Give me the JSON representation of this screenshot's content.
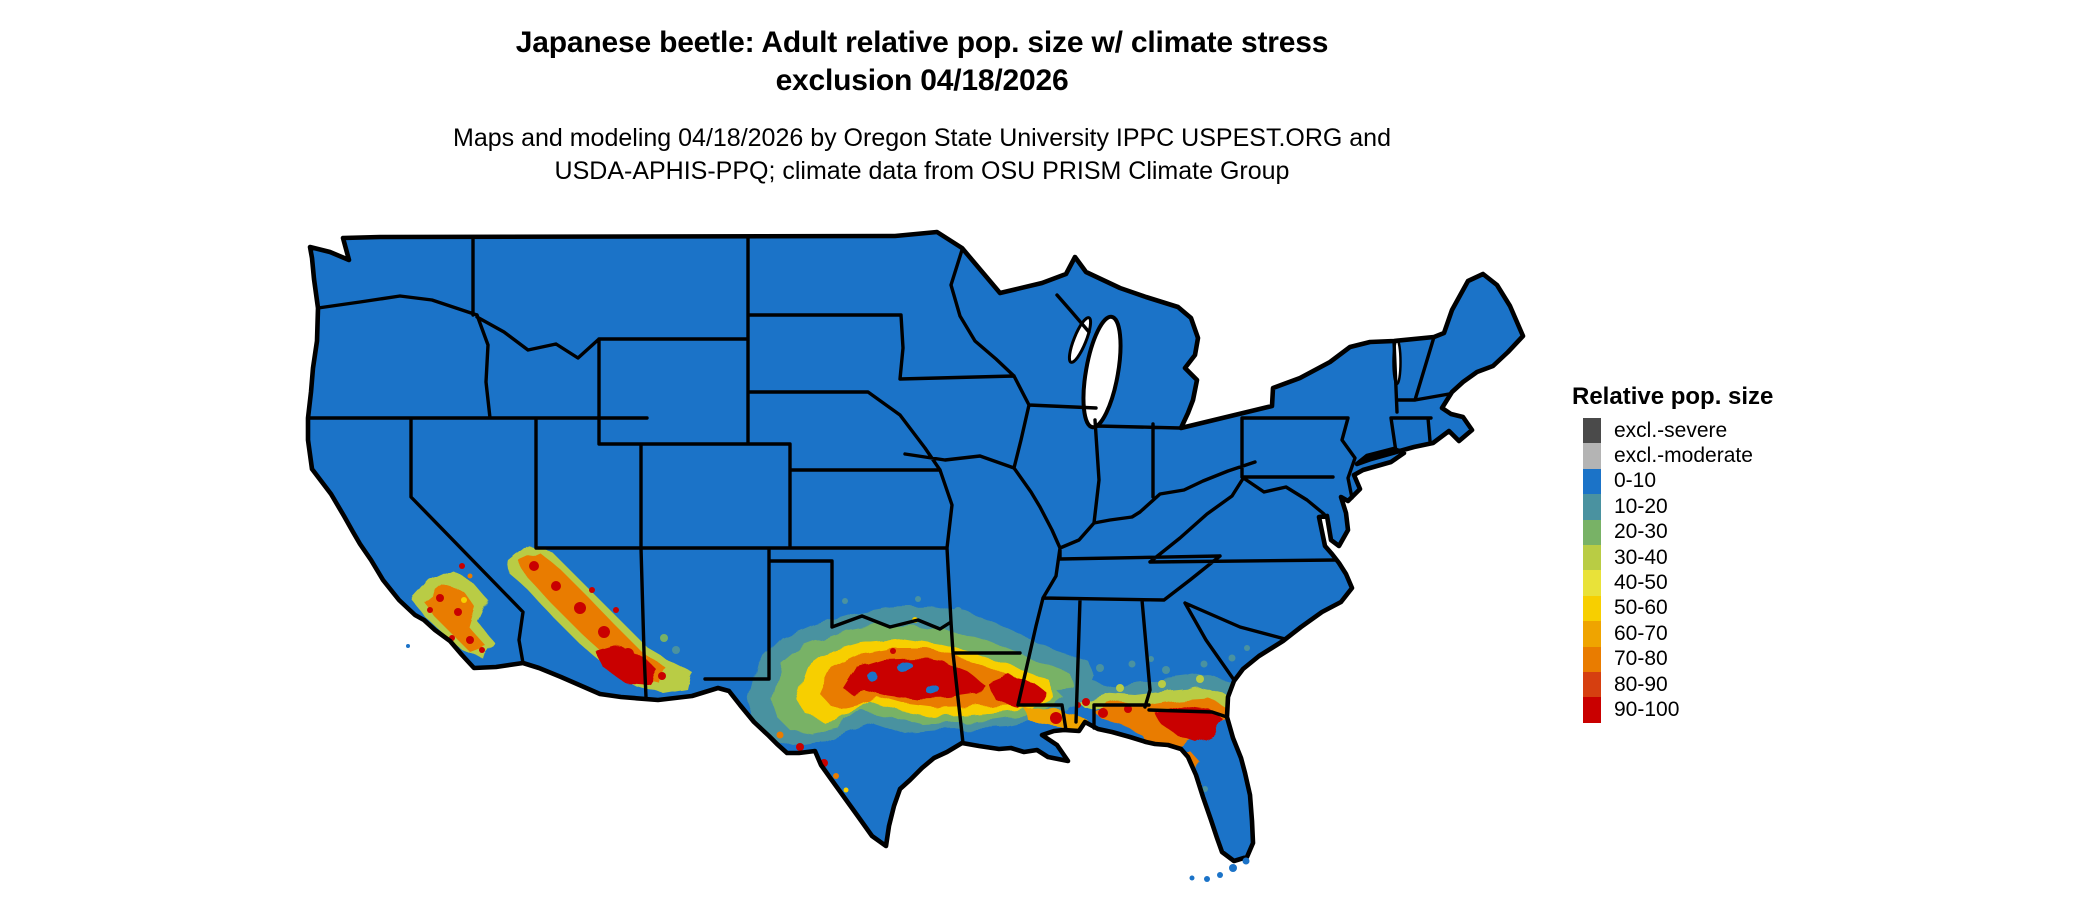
{
  "header": {
    "title_line1": "Japanese beetle: Adult relative pop. size w/ climate stress",
    "title_line2": "exclusion 04/18/2026",
    "subtitle_line1": "Maps and modeling 04/18/2026 by Oregon State University IPPC USPEST.ORG and",
    "subtitle_line2": "USDA-APHIS-PPQ; climate data from OSU PRISM Climate Group"
  },
  "legend": {
    "title": "Relative pop. size",
    "entries": [
      {
        "label": "excl.-severe",
        "color": "#4a4a4a"
      },
      {
        "label": "excl.-moderate",
        "color": "#b4b4b4"
      },
      {
        "label": "0-10",
        "color": "#1b73c8"
      },
      {
        "label": "10-20",
        "color": "#4a92a0"
      },
      {
        "label": "20-30",
        "color": "#78b266"
      },
      {
        "label": "30-40",
        "color": "#b9cc44"
      },
      {
        "label": "40-50",
        "color": "#e9e239"
      },
      {
        "label": "50-60",
        "color": "#f7cf00"
      },
      {
        "label": "60-70",
        "color": "#efa400"
      },
      {
        "label": "70-80",
        "color": "#e97c00"
      },
      {
        "label": "80-90",
        "color": "#d63f10"
      },
      {
        "label": "90-100",
        "color": "#c90000"
      }
    ]
  },
  "map": {
    "region": "Continental United States",
    "border_color": "#000000",
    "water_color": "#ffffff",
    "base_class": "0-10",
    "hotspots": [
      {
        "area": "Coastal southern California",
        "levels": "30-100"
      },
      {
        "area": "Central and southern Arizona into SW New Mexico",
        "levels": "30-100"
      },
      {
        "area": "West Texas / Rio Grande valley",
        "levels": "40-100"
      },
      {
        "area": "Central-east Texas through Louisiana and coastal Mississippi",
        "levels": "20-100"
      },
      {
        "area": "Southern Alabama and Georgia into north Florida",
        "levels": "20-100"
      },
      {
        "area": "Central Florida",
        "levels": "20-80"
      }
    ]
  },
  "chart_data": {
    "type": "heatmap",
    "title": "Japanese beetle: Adult relative pop. size w/ climate stress exclusion 04/18/2026",
    "legend_title": "Relative pop. size",
    "classes": [
      "excl.-severe",
      "excl.-moderate",
      "0-10",
      "10-20",
      "20-30",
      "30-40",
      "40-50",
      "50-60",
      "60-70",
      "70-80",
      "80-90",
      "90-100"
    ],
    "colors": [
      "#4a4a4a",
      "#b4b4b4",
      "#1b73c8",
      "#4a92a0",
      "#78b266",
      "#b9cc44",
      "#e9e239",
      "#f7cf00",
      "#efa400",
      "#e97c00",
      "#d63f10",
      "#c90000"
    ],
    "legend_position": "right",
    "notes": "Most of CONUS is mapped 0-10 (blue). Relative pop. 60-100 (orange-red) across central/east Texas, Gulf Coast Louisiana-Mississippi, southern Alabama-Georgia, north-central Florida, southern Arizona and coastal southern California; no excluded (gray) areas visible."
  }
}
